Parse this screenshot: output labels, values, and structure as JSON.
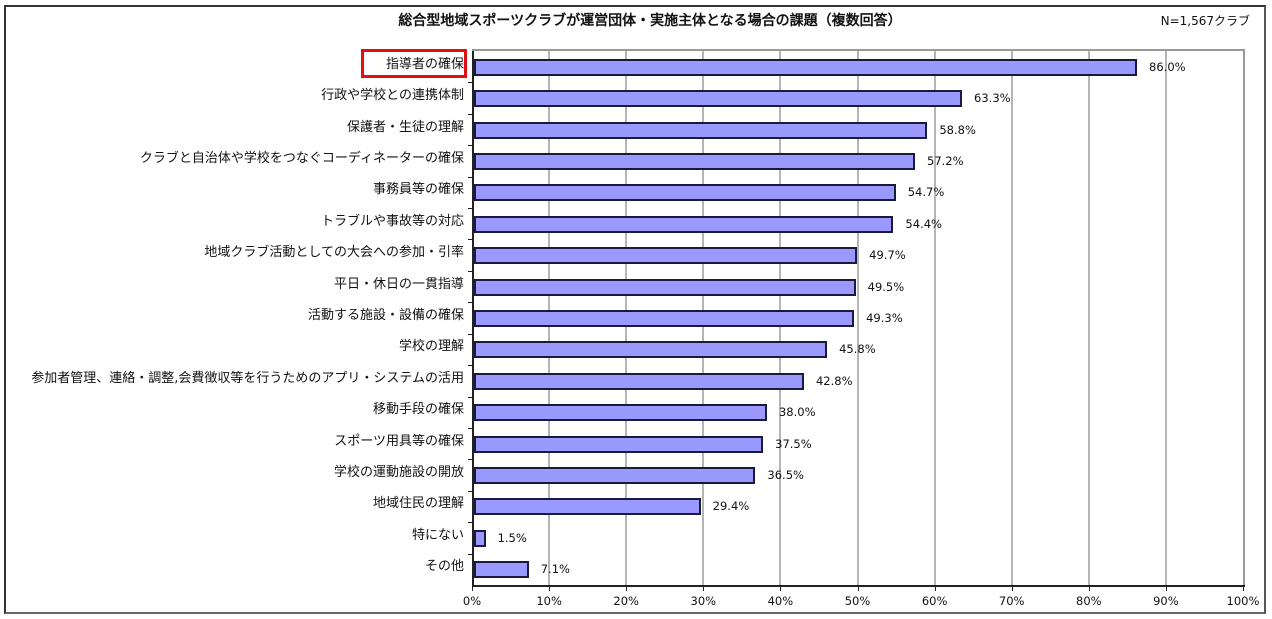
{
  "chart_data": {
    "type": "bar",
    "orientation": "horizontal",
    "title": "総合型地域スポーツクラブが運営団体・実施主体となる場合の課題（複数回答）",
    "annotation": "N=1,567クラブ",
    "xlabel": "",
    "ylabel": "",
    "xlim": [
      0,
      100
    ],
    "x_ticks": [
      "0%",
      "10%",
      "20%",
      "30%",
      "40%",
      "50%",
      "60%",
      "70%",
      "80%",
      "90%",
      "100%"
    ],
    "grid": true,
    "legend": null,
    "bar_color": "#9999ff",
    "bar_border_color": "#1a1a3a",
    "highlight_color": "#e01010",
    "highlighted_category": "指導者の確保",
    "categories": [
      "指導者の確保",
      "行政や学校との連携体制",
      "保護者・生徒の理解",
      "クラブと自治体や学校をつなぐコーディネーターの確保",
      "事務員等の確保",
      "トラブルや事故等の対応",
      "地域クラブ活動としての大会への参加・引率",
      "平日・休日の一貫指導",
      "活動する施設・設備の確保",
      "学校の理解",
      "参加者管理、連絡・調整,会費徴収等を行うためのアプリ・システムの活用",
      "移動手段の確保",
      "スポーツ用具等の確保",
      "学校の運動施設の開放",
      "地域住民の理解",
      "特にない",
      "その他"
    ],
    "values": [
      86.0,
      63.3,
      58.8,
      57.2,
      54.7,
      54.4,
      49.7,
      49.5,
      49.3,
      45.8,
      42.8,
      38.0,
      37.5,
      36.5,
      29.4,
      1.5,
      7.1
    ],
    "value_labels": [
      "86.0%",
      "63.3%",
      "58.8%",
      "57.2%",
      "54.7%",
      "54.4%",
      "49.7%",
      "49.5%",
      "49.3%",
      "45.8%",
      "42.8%",
      "38.0%",
      "37.5%",
      "36.5%",
      "29.4%",
      "1.5%",
      "7.1%"
    ]
  }
}
